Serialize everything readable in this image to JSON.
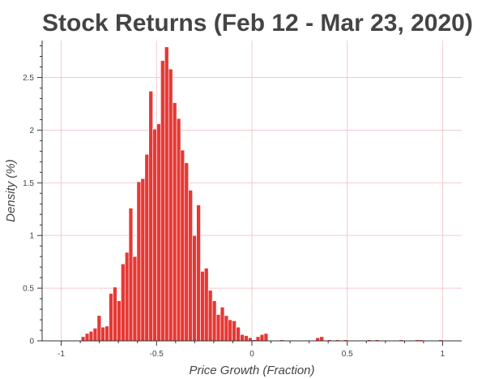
{
  "chart_data": {
    "type": "bar",
    "title": "Stock Returns (Feb 12 - Mar 23, 2020)",
    "xlabel": "Price Growth (Fraction)",
    "ylabel": "Density (%)",
    "xlim": [
      -1.1,
      1.1
    ],
    "ylim": [
      0,
      2.85
    ],
    "x_ticks": [
      -1,
      -0.5,
      0,
      0.5,
      1
    ],
    "x_tick_labels": [
      "-1",
      "-0.5",
      "0",
      "0.5",
      "1"
    ],
    "y_ticks": [
      0,
      0.5,
      1,
      1.5,
      2,
      2.5
    ],
    "y_tick_labels": [
      "0",
      "0.5",
      "1",
      "1.5",
      "2",
      "2.5"
    ],
    "grid": true,
    "bin_width": 0.0208,
    "x": [
      -0.885,
      -0.864,
      -0.843,
      -0.822,
      -0.801,
      -0.781,
      -0.76,
      -0.739,
      -0.718,
      -0.697,
      -0.676,
      -0.655,
      -0.635,
      -0.614,
      -0.593,
      -0.572,
      -0.551,
      -0.53,
      -0.51,
      -0.489,
      -0.468,
      -0.447,
      -0.426,
      -0.405,
      -0.384,
      -0.364,
      -0.343,
      -0.322,
      -0.301,
      -0.28,
      -0.259,
      -0.239,
      -0.218,
      -0.197,
      -0.176,
      -0.155,
      -0.134,
      -0.114,
      -0.093,
      -0.072,
      -0.051,
      -0.03,
      -0.009,
      0.012,
      0.032,
      0.053,
      0.074,
      0.157,
      0.345,
      0.366,
      0.407,
      0.449,
      0.491,
      0.616,
      0.657,
      0.782,
      0.866,
      0.886,
      0.99
    ],
    "values": [
      0.04,
      0.07,
      0.09,
      0.12,
      0.24,
      0.13,
      0.14,
      0.45,
      0.51,
      0.38,
      0.73,
      0.84,
      1.26,
      0.8,
      1.51,
      1.54,
      1.77,
      2.37,
      2.01,
      2.06,
      2.66,
      2.79,
      2.58,
      2.26,
      2.11,
      1.81,
      1.69,
      1.43,
      1.0,
      1.29,
      0.66,
      0.69,
      0.48,
      0.38,
      0.25,
      0.32,
      0.24,
      0.2,
      0.19,
      0.13,
      0.06,
      0.05,
      0.03,
      0.01,
      0.04,
      0.06,
      0.07,
      0.01,
      0.03,
      0.04,
      0.01,
      0.01,
      0.01,
      0.01,
      0.01,
      0.01,
      0.01,
      0.01,
      0.01
    ]
  }
}
